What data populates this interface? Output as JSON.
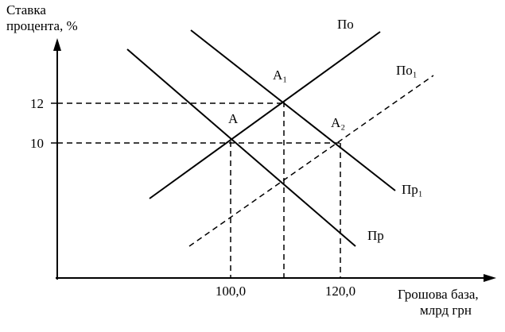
{
  "axes": {
    "y_label_line1": "Ставка",
    "y_label_line2": "процента, %",
    "x_label_line1": "Грошова база,",
    "x_label_line2": "млрд грн",
    "y_ticks": [
      "12",
      "10"
    ],
    "x_ticks": [
      "100,0",
      "120,0"
    ]
  },
  "curves": {
    "supply": "По",
    "supply_shifted": "По₁",
    "demand": "Пр",
    "demand_shifted": "Пр₁"
  },
  "points": {
    "a": "A",
    "a1": "A₁",
    "a2": "A₂"
  }
}
